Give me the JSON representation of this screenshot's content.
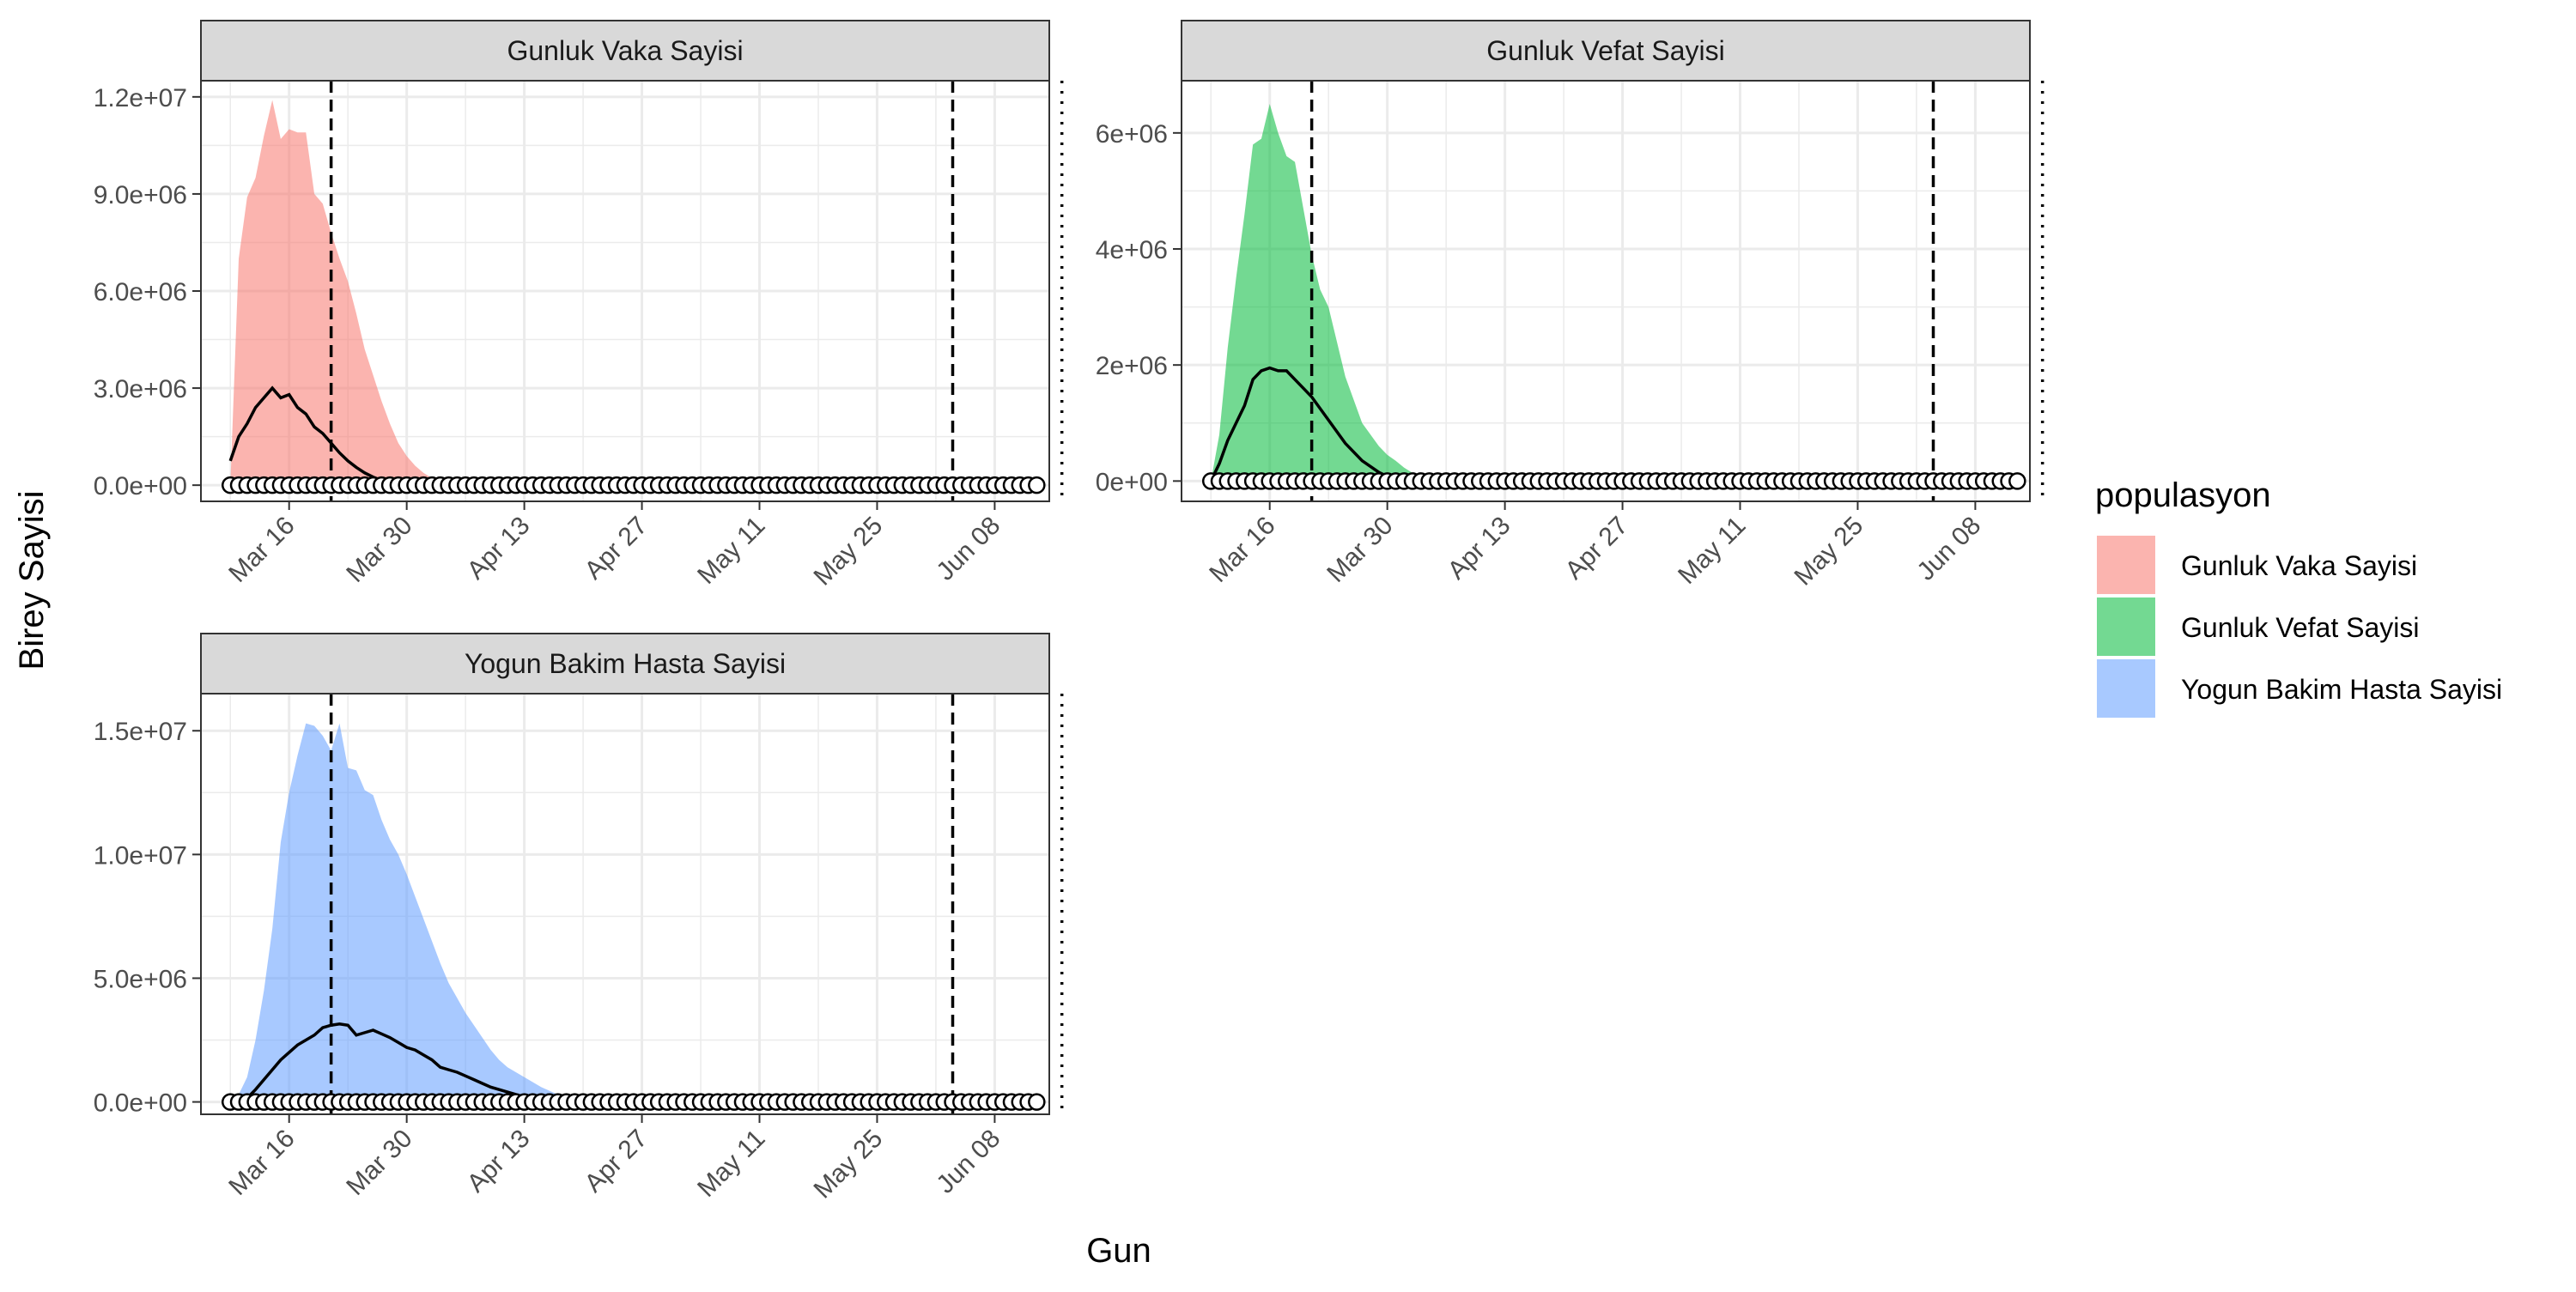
{
  "figure": {
    "ylabel": "Birey Sayisi",
    "xlabel": "Gun",
    "legend_title": "populasyon",
    "legend_position": "right"
  },
  "colors": {
    "Gunluk Vaka Sayisi": "#F8766D",
    "Gunluk Vefat Sayisi": "#00BA38",
    "Yogun Bakim Hasta Sayisi": "#619CFF",
    "line": "#000000",
    "strip": "#d9d9d9",
    "grid": "#ebebeb"
  },
  "legend": {
    "title": "populasyon",
    "items": [
      {
        "label": "Gunluk Vaka Sayisi",
        "color": "#F8766D"
      },
      {
        "label": "Gunluk Vefat Sayisi",
        "color": "#00BA38"
      },
      {
        "label": "Yogun Bakim Hasta Sayisi",
        "color": "#619CFF"
      }
    ]
  },
  "chart_data": [
    {
      "type": "area",
      "title": "Gunluk Vaka Sayisi",
      "xlabel": "Gun",
      "ylabel": "Birey Sayisi",
      "x_range": [
        "2020-03-09",
        "2020-06-14"
      ],
      "xticks": [
        "Mar 16",
        "Mar 30",
        "Apr 13",
        "Apr 27",
        "May 11",
        "May 25",
        "Jun 08"
      ],
      "ylim": [
        -500000,
        12500000
      ],
      "yticks": [
        "0.0e+00",
        "3.0e+06",
        "6.0e+06",
        "9.0e+06",
        "1.2e+07"
      ],
      "ytick_values": [
        0,
        3000000,
        6000000,
        9000000,
        12000000
      ],
      "vlines": [
        {
          "date": "2020-03-21",
          "style": "dashed"
        },
        {
          "date": "2020-06-03",
          "style": "dashed"
        },
        {
          "date": "2020-06-16",
          "style": "dotted"
        }
      ],
      "band_upper": [
        [
          0,
          0
        ],
        [
          1,
          7000000
        ],
        [
          2,
          8900000
        ],
        [
          3,
          9500000
        ],
        [
          4,
          10800000
        ],
        [
          5,
          11900000
        ],
        [
          6,
          10700000
        ],
        [
          7,
          11000000
        ],
        [
          8,
          10900000
        ],
        [
          9,
          10900000
        ],
        [
          10,
          9000000
        ],
        [
          11,
          8700000
        ],
        [
          12,
          7800000
        ],
        [
          13,
          7000000
        ],
        [
          14,
          6300000
        ],
        [
          15,
          5300000
        ],
        [
          16,
          4200000
        ],
        [
          17,
          3400000
        ],
        [
          18,
          2600000
        ],
        [
          19,
          1900000
        ],
        [
          20,
          1300000
        ],
        [
          21,
          900000
        ],
        [
          22,
          600000
        ],
        [
          23,
          380000
        ],
        [
          24,
          220000
        ],
        [
          25,
          130000
        ],
        [
          26,
          70000
        ],
        [
          27,
          30000
        ],
        [
          28,
          10000
        ],
        [
          29,
          0
        ]
      ],
      "line": [
        [
          0,
          750000
        ],
        [
          1,
          1500000
        ],
        [
          2,
          1900000
        ],
        [
          3,
          2400000
        ],
        [
          4,
          2700000
        ],
        [
          5,
          3000000
        ],
        [
          6,
          2700000
        ],
        [
          7,
          2800000
        ],
        [
          8,
          2400000
        ],
        [
          9,
          2200000
        ],
        [
          10,
          1800000
        ],
        [
          11,
          1600000
        ],
        [
          12,
          1300000
        ],
        [
          13,
          1000000
        ],
        [
          14,
          750000
        ],
        [
          15,
          550000
        ],
        [
          16,
          380000
        ],
        [
          17,
          250000
        ],
        [
          18,
          150000
        ],
        [
          19,
          90000
        ],
        [
          20,
          50000
        ],
        [
          21,
          20000
        ],
        [
          22,
          0
        ]
      ],
      "points_count": 97
    },
    {
      "type": "area",
      "title": "Gunluk Vefat Sayisi",
      "xlabel": "Gun",
      "ylabel": "Birey Sayisi",
      "x_range": [
        "2020-03-09",
        "2020-06-14"
      ],
      "xticks": [
        "Mar 16",
        "Mar 30",
        "Apr 13",
        "Apr 27",
        "May 11",
        "May 25",
        "Jun 08"
      ],
      "ylim": [
        -350000,
        6900000
      ],
      "yticks": [
        "0e+00",
        "2e+06",
        "4e+06",
        "6e+06"
      ],
      "ytick_values": [
        0,
        2000000,
        4000000,
        6000000
      ],
      "vlines": [
        {
          "date": "2020-03-21",
          "style": "dashed"
        },
        {
          "date": "2020-06-03",
          "style": "dashed"
        },
        {
          "date": "2020-06-16",
          "style": "dotted"
        }
      ],
      "band_upper": [
        [
          0,
          0
        ],
        [
          1,
          800000
        ],
        [
          2,
          2300000
        ],
        [
          3,
          3500000
        ],
        [
          4,
          4600000
        ],
        [
          5,
          5800000
        ],
        [
          6,
          5900000
        ],
        [
          7,
          6500000
        ],
        [
          8,
          6000000
        ],
        [
          9,
          5600000
        ],
        [
          10,
          5500000
        ],
        [
          11,
          4700000
        ],
        [
          12,
          3900000
        ],
        [
          13,
          3300000
        ],
        [
          14,
          3000000
        ],
        [
          15,
          2400000
        ],
        [
          16,
          1800000
        ],
        [
          17,
          1400000
        ],
        [
          18,
          1000000
        ],
        [
          19,
          800000
        ],
        [
          20,
          600000
        ],
        [
          21,
          450000
        ],
        [
          22,
          350000
        ],
        [
          23,
          230000
        ],
        [
          24,
          140000
        ],
        [
          25,
          80000
        ],
        [
          26,
          40000
        ],
        [
          27,
          15000
        ],
        [
          28,
          0
        ]
      ],
      "line": [
        [
          0,
          0
        ],
        [
          1,
          300000
        ],
        [
          2,
          700000
        ],
        [
          3,
          1000000
        ],
        [
          4,
          1300000
        ],
        [
          5,
          1750000
        ],
        [
          6,
          1900000
        ],
        [
          7,
          1950000
        ],
        [
          8,
          1900000
        ],
        [
          9,
          1900000
        ],
        [
          10,
          1750000
        ],
        [
          11,
          1600000
        ],
        [
          12,
          1450000
        ],
        [
          13,
          1250000
        ],
        [
          14,
          1050000
        ],
        [
          15,
          850000
        ],
        [
          16,
          650000
        ],
        [
          17,
          500000
        ],
        [
          18,
          350000
        ],
        [
          19,
          250000
        ],
        [
          20,
          150000
        ],
        [
          21,
          80000
        ],
        [
          22,
          40000
        ],
        [
          23,
          10000
        ],
        [
          24,
          0
        ]
      ],
      "points_count": 97
    },
    {
      "type": "area",
      "title": "Yogun Bakim Hasta Sayisi",
      "xlabel": "Gun",
      "ylabel": "Birey Sayisi",
      "x_range": [
        "2020-03-09",
        "2020-06-14"
      ],
      "xticks": [
        "Mar 16",
        "Mar 30",
        "Apr 13",
        "Apr 27",
        "May 11",
        "May 25",
        "Jun 08"
      ],
      "ylim": [
        -500000,
        16500000
      ],
      "yticks": [
        "0.0e+00",
        "5.0e+06",
        "1.0e+07",
        "1.5e+07"
      ],
      "ytick_values": [
        0,
        5000000,
        10000000,
        15000000
      ],
      "vlines": [
        {
          "date": "2020-03-21",
          "style": "dashed"
        },
        {
          "date": "2020-06-03",
          "style": "dashed"
        },
        {
          "date": "2020-06-16",
          "style": "dotted"
        }
      ],
      "band_upper": [
        [
          0,
          0
        ],
        [
          1,
          300000
        ],
        [
          2,
          1000000
        ],
        [
          3,
          2500000
        ],
        [
          4,
          4500000
        ],
        [
          5,
          7000000
        ],
        [
          6,
          10500000
        ],
        [
          7,
          12500000
        ],
        [
          8,
          14000000
        ],
        [
          9,
          15300000
        ],
        [
          10,
          15200000
        ],
        [
          11,
          14800000
        ],
        [
          12,
          14200000
        ],
        [
          13,
          15300000
        ],
        [
          14,
          13500000
        ],
        [
          15,
          13400000
        ],
        [
          16,
          12600000
        ],
        [
          17,
          12400000
        ],
        [
          18,
          11400000
        ],
        [
          19,
          10600000
        ],
        [
          20,
          10000000
        ],
        [
          21,
          9200000
        ],
        [
          22,
          8300000
        ],
        [
          23,
          7400000
        ],
        [
          24,
          6500000
        ],
        [
          25,
          5600000
        ],
        [
          26,
          4800000
        ],
        [
          27,
          4200000
        ],
        [
          28,
          3600000
        ],
        [
          29,
          3100000
        ],
        [
          30,
          2600000
        ],
        [
          31,
          2100000
        ],
        [
          32,
          1700000
        ],
        [
          33,
          1400000
        ],
        [
          34,
          1200000
        ],
        [
          35,
          1000000
        ],
        [
          36,
          800000
        ],
        [
          37,
          600000
        ],
        [
          38,
          450000
        ],
        [
          39,
          300000
        ],
        [
          40,
          200000
        ],
        [
          41,
          100000
        ],
        [
          42,
          50000
        ],
        [
          43,
          0
        ]
      ],
      "line": [
        [
          0,
          0
        ],
        [
          1,
          50000
        ],
        [
          2,
          150000
        ],
        [
          3,
          500000
        ],
        [
          4,
          900000
        ],
        [
          5,
          1300000
        ],
        [
          6,
          1700000
        ],
        [
          7,
          2000000
        ],
        [
          8,
          2300000
        ],
        [
          9,
          2500000
        ],
        [
          10,
          2700000
        ],
        [
          11,
          3000000
        ],
        [
          12,
          3100000
        ],
        [
          13,
          3150000
        ],
        [
          14,
          3100000
        ],
        [
          15,
          2700000
        ],
        [
          16,
          2800000
        ],
        [
          17,
          2900000
        ],
        [
          18,
          2750000
        ],
        [
          19,
          2600000
        ],
        [
          20,
          2400000
        ],
        [
          21,
          2200000
        ],
        [
          22,
          2100000
        ],
        [
          23,
          1900000
        ],
        [
          24,
          1700000
        ],
        [
          25,
          1400000
        ],
        [
          26,
          1300000
        ],
        [
          27,
          1200000
        ],
        [
          28,
          1050000
        ],
        [
          29,
          900000
        ],
        [
          30,
          750000
        ],
        [
          31,
          600000
        ],
        [
          32,
          500000
        ],
        [
          33,
          400000
        ],
        [
          34,
          300000
        ],
        [
          35,
          200000
        ],
        [
          36,
          150000
        ],
        [
          37,
          100000
        ],
        [
          38,
          50000
        ],
        [
          39,
          20000
        ],
        [
          40,
          0
        ]
      ],
      "points_count": 97
    }
  ]
}
